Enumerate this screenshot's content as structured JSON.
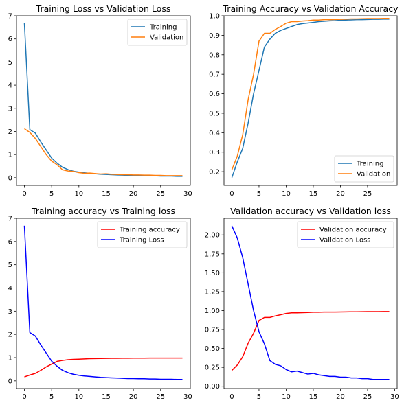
{
  "chart_data": [
    {
      "type": "line",
      "title": "Training Loss vs Validation Loss",
      "xlabel": "",
      "ylabel": "",
      "xlim": [
        -1.45,
        30.45
      ],
      "ylim": [
        -0.33,
        7.0
      ],
      "xticks": [
        0,
        5,
        10,
        15,
        20,
        25,
        30
      ],
      "yticks": [
        0,
        1,
        2,
        3,
        4,
        5,
        6,
        7
      ],
      "ytick_labels": [
        "0",
        "1",
        "2",
        "3",
        "4",
        "5",
        "6",
        "7"
      ],
      "legend_position": "top-right",
      "x": [
        0,
        1,
        2,
        3,
        4,
        5,
        6,
        7,
        8,
        9,
        10,
        11,
        12,
        13,
        14,
        15,
        16,
        17,
        18,
        19,
        20,
        21,
        22,
        23,
        24,
        25,
        26,
        27,
        28,
        29
      ],
      "series": [
        {
          "name": "Training",
          "color": "#1f77b4",
          "values": [
            6.68,
            2.08,
            1.93,
            1.55,
            1.2,
            0.85,
            0.63,
            0.45,
            0.35,
            0.28,
            0.24,
            0.21,
            0.19,
            0.17,
            0.15,
            0.14,
            0.13,
            0.12,
            0.11,
            0.1,
            0.1,
            0.09,
            0.09,
            0.08,
            0.08,
            0.07,
            0.07,
            0.07,
            0.06,
            0.06
          ]
        },
        {
          "name": "Validation",
          "color": "#ff7f0e",
          "values": [
            2.12,
            1.96,
            1.7,
            1.35,
            1.0,
            0.72,
            0.56,
            0.34,
            0.29,
            0.27,
            0.22,
            0.19,
            0.2,
            0.18,
            0.16,
            0.17,
            0.15,
            0.14,
            0.13,
            0.13,
            0.12,
            0.12,
            0.11,
            0.11,
            0.1,
            0.1,
            0.09,
            0.09,
            0.09,
            0.09
          ]
        }
      ]
    },
    {
      "type": "line",
      "title": "Training Accuracy vs Validation Accuracy",
      "xlabel": "",
      "ylabel": "",
      "xlim": [
        -1.45,
        30.45
      ],
      "ylim": [
        0.13,
        1.0
      ],
      "xticks": [
        0,
        5,
        10,
        15,
        20,
        25
      ],
      "yticks": [
        0.2,
        0.3,
        0.4,
        0.5,
        0.6,
        0.7,
        0.8,
        0.9,
        1.0
      ],
      "ytick_labels": [
        "0.2",
        "0.3",
        "0.4",
        "0.5",
        "0.6",
        "0.7",
        "0.8",
        "0.9",
        "1.0"
      ],
      "legend_position": "bottom-right",
      "x": [
        0,
        1,
        2,
        3,
        4,
        5,
        6,
        7,
        8,
        9,
        10,
        11,
        12,
        13,
        14,
        15,
        16,
        17,
        18,
        19,
        20,
        21,
        22,
        23,
        24,
        25,
        26,
        27,
        28,
        29
      ],
      "series": [
        {
          "name": "Training",
          "color": "#1f77b4",
          "values": [
            0.17,
            0.25,
            0.32,
            0.45,
            0.6,
            0.72,
            0.84,
            0.88,
            0.91,
            0.925,
            0.935,
            0.945,
            0.955,
            0.96,
            0.963,
            0.966,
            0.97,
            0.972,
            0.974,
            0.975,
            0.977,
            0.978,
            0.979,
            0.98,
            0.98,
            0.981,
            0.982,
            0.982,
            0.983,
            0.983
          ]
        },
        {
          "name": "Validation",
          "color": "#ff7f0e",
          "values": [
            0.21,
            0.28,
            0.39,
            0.57,
            0.7,
            0.87,
            0.91,
            0.91,
            0.93,
            0.945,
            0.962,
            0.97,
            0.97,
            0.973,
            0.975,
            0.978,
            0.978,
            0.98,
            0.98,
            0.981,
            0.982,
            0.983,
            0.984,
            0.984,
            0.985,
            0.986,
            0.986,
            0.986,
            0.987,
            0.987
          ]
        }
      ]
    },
    {
      "type": "line",
      "title": "Training accuracy vs Training loss",
      "xlabel": "",
      "ylabel": "",
      "xlim": [
        -1.45,
        30.45
      ],
      "ylim": [
        -0.33,
        7.0
      ],
      "xticks": [
        0,
        5,
        10,
        15,
        20,
        25,
        30
      ],
      "yticks": [
        0,
        1,
        2,
        3,
        4,
        5,
        6,
        7
      ],
      "ytick_labels": [
        "0",
        "1",
        "2",
        "3",
        "4",
        "5",
        "6",
        "7"
      ],
      "legend_position": "top-right",
      "x": [
        0,
        1,
        2,
        3,
        4,
        5,
        6,
        7,
        8,
        9,
        10,
        11,
        12,
        13,
        14,
        15,
        16,
        17,
        18,
        19,
        20,
        21,
        22,
        23,
        24,
        25,
        26,
        27,
        28,
        29
      ],
      "series": [
        {
          "name": "Training accuracy",
          "color": "#ff0000",
          "values": [
            0.17,
            0.25,
            0.32,
            0.45,
            0.6,
            0.72,
            0.84,
            0.88,
            0.91,
            0.925,
            0.935,
            0.945,
            0.955,
            0.96,
            0.963,
            0.966,
            0.97,
            0.972,
            0.974,
            0.975,
            0.977,
            0.978,
            0.979,
            0.98,
            0.98,
            0.981,
            0.982,
            0.982,
            0.983,
            0.983
          ]
        },
        {
          "name": "Training Loss",
          "color": "#0000ff",
          "values": [
            6.68,
            2.08,
            1.93,
            1.55,
            1.2,
            0.85,
            0.63,
            0.45,
            0.35,
            0.28,
            0.24,
            0.21,
            0.19,
            0.17,
            0.15,
            0.14,
            0.13,
            0.12,
            0.11,
            0.1,
            0.1,
            0.09,
            0.09,
            0.08,
            0.08,
            0.07,
            0.07,
            0.07,
            0.06,
            0.06
          ]
        }
      ]
    },
    {
      "type": "line",
      "title": "Validation accuracy vs Validation loss",
      "xlabel": "",
      "ylabel": "",
      "xlim": [
        -1.45,
        30.45
      ],
      "ylim": [
        -0.03,
        2.22
      ],
      "xticks": [
        0,
        5,
        10,
        15,
        20,
        25,
        30
      ],
      "yticks": [
        0.0,
        0.25,
        0.5,
        0.75,
        1.0,
        1.25,
        1.5,
        1.75,
        2.0
      ],
      "ytick_labels": [
        "0.00",
        "0.25",
        "0.50",
        "0.75",
        "1.00",
        "1.25",
        "1.50",
        "1.75",
        "2.00"
      ],
      "legend_position": "top-right",
      "x": [
        0,
        1,
        2,
        3,
        4,
        5,
        6,
        7,
        8,
        9,
        10,
        11,
        12,
        13,
        14,
        15,
        16,
        17,
        18,
        19,
        20,
        21,
        22,
        23,
        24,
        25,
        26,
        27,
        28,
        29
      ],
      "series": [
        {
          "name": "Validation accuracy",
          "color": "#ff0000",
          "values": [
            0.21,
            0.28,
            0.39,
            0.57,
            0.7,
            0.87,
            0.91,
            0.91,
            0.93,
            0.945,
            0.962,
            0.97,
            0.97,
            0.973,
            0.975,
            0.978,
            0.978,
            0.98,
            0.98,
            0.981,
            0.982,
            0.983,
            0.984,
            0.984,
            0.985,
            0.986,
            0.986,
            0.986,
            0.987,
            0.987
          ]
        },
        {
          "name": "Validation Loss",
          "color": "#0000ff",
          "values": [
            2.12,
            1.96,
            1.7,
            1.35,
            1.0,
            0.72,
            0.56,
            0.34,
            0.29,
            0.27,
            0.22,
            0.19,
            0.2,
            0.18,
            0.16,
            0.17,
            0.15,
            0.14,
            0.13,
            0.13,
            0.12,
            0.12,
            0.11,
            0.11,
            0.1,
            0.1,
            0.09,
            0.09,
            0.09,
            0.09
          ]
        }
      ]
    }
  ]
}
